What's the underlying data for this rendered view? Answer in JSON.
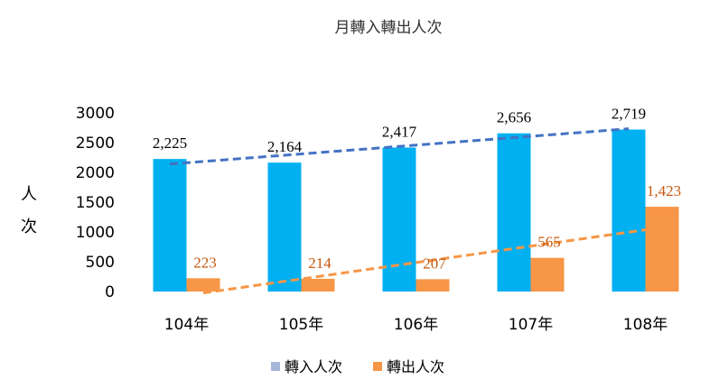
{
  "chart_data": {
    "type": "bar",
    "title": "月轉入轉出人次",
    "ylabel": "人次",
    "xlabel": "",
    "categories": [
      "104年",
      "105年",
      "106年",
      "107年",
      "108年"
    ],
    "ylim": [
      0,
      3000
    ],
    "yticks": [
      "0",
      "500",
      "1000",
      "1500",
      "2000",
      "2500",
      "3000"
    ],
    "series": [
      {
        "name": "轉入人次",
        "values": [
          2225,
          2164,
          2417,
          2656,
          2719
        ],
        "labels": [
          "2,225",
          "2,164",
          "2,417",
          "2,656",
          "2,719"
        ],
        "color": "#00b0f0",
        "label_color": "#000000",
        "trendline_color": "#4472c4"
      },
      {
        "name": "轉出人次",
        "values": [
          223,
          214,
          207,
          565,
          1423
        ],
        "labels": [
          "223",
          "214",
          "207",
          "565",
          "1,423"
        ],
        "color": "#f79646",
        "label_color": "#c55a11",
        "trendline_color": "#f79646"
      }
    ],
    "trendline": "linear, dashed",
    "legend": "bottom",
    "legend_markers": [
      "#a5b6d9",
      "#f79646"
    ],
    "grid": false
  }
}
